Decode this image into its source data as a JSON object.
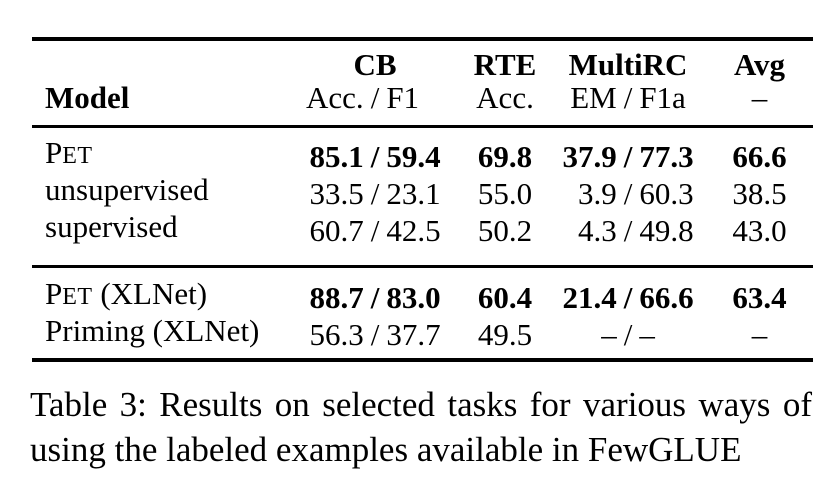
{
  "table": {
    "separator": "/",
    "header": {
      "model_label": "Model",
      "cb_title": "CB",
      "cb_sub_left": "Acc.",
      "cb_sub_right": "F1",
      "rte_title": "RTE",
      "rte_sub": "Acc.",
      "multirc_title": "MultiRC",
      "multirc_sub_left": "EM",
      "multirc_sub_right": "F1a",
      "avg_title": "Avg",
      "avg_sub": "–"
    },
    "rows": [
      {
        "model_initial": "P",
        "model_smallcaps": "ET",
        "model_rest": "",
        "cb_left": "85.1",
        "cb_right": "59.4",
        "rte": "69.8",
        "multirc_left": "37.9",
        "multirc_right": "77.3",
        "avg": "66.6",
        "values_bold": true
      },
      {
        "model_initial": "",
        "model_smallcaps": "",
        "model_rest": "unsupervised",
        "cb_left": "33.5",
        "cb_right": "23.1",
        "rte": "55.0",
        "multirc_left": "3.9",
        "multirc_right": "60.3",
        "avg": "38.5",
        "values_bold": false
      },
      {
        "model_initial": "",
        "model_smallcaps": "",
        "model_rest": "supervised",
        "cb_left": "60.7",
        "cb_right": "42.5",
        "rte": "50.2",
        "multirc_left": "4.3",
        "multirc_right": "49.8",
        "avg": "43.0",
        "values_bold": false
      },
      {
        "model_initial": "P",
        "model_smallcaps": "ET",
        "model_rest": " (XLNet)",
        "cb_left": "88.7",
        "cb_right": "83.0",
        "rte": "60.4",
        "multirc_left": "21.4",
        "multirc_right": "66.6",
        "avg": "63.4",
        "values_bold": true
      },
      {
        "model_initial": "",
        "model_smallcaps": "",
        "model_rest": "Priming (XLNet)",
        "cb_left": "56.3",
        "cb_right": "37.7",
        "rte": "49.5",
        "multirc_left": "–",
        "multirc_right": "–",
        "avg": "–",
        "values_bold": false
      }
    ]
  },
  "caption": {
    "line1": "Table 3: Results on selected tasks for various ways of",
    "line2": "using the labeled examples available in FewGLUE"
  },
  "colors": {
    "text": "#000000",
    "background": "#ffffff",
    "rule": "#000000"
  }
}
